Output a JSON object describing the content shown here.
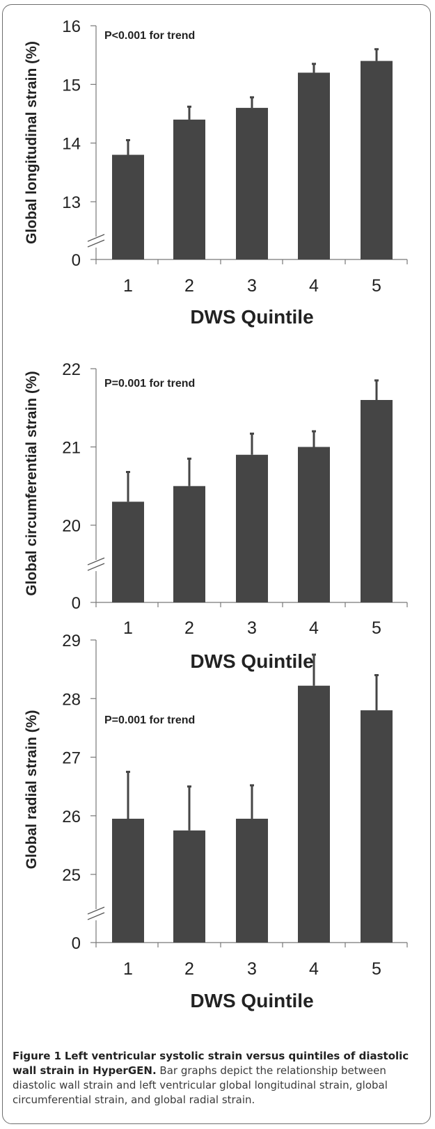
{
  "chart_data": [
    {
      "type": "bar",
      "categories": [
        "1",
        "2",
        "3",
        "4",
        "5"
      ],
      "values": [
        13.8,
        14.4,
        14.6,
        15.2,
        15.4
      ],
      "error_upper": [
        14.05,
        14.62,
        14.78,
        15.35,
        15.6
      ],
      "ylabel": "Global longitudinal strain (%)",
      "xlabel": "DWS Quintile",
      "annotation": "P<0.001 for trend",
      "ylim": [
        13,
        16
      ],
      "yticks": [
        13,
        14,
        15,
        16
      ],
      "axis_break": true,
      "break_value_label": "0",
      "bar_color": "#454545"
    },
    {
      "type": "bar",
      "categories": [
        "1",
        "2",
        "3",
        "4",
        "5"
      ],
      "values": [
        20.3,
        20.5,
        20.9,
        21.0,
        21.6
      ],
      "error_upper": [
        20.68,
        20.85,
        21.17,
        21.2,
        21.85
      ],
      "ylabel": "Global circumferential strain (%)",
      "xlabel": "DWS Quintile",
      "annotation": "P=0.001 for trend",
      "ylim": [
        20,
        22
      ],
      "yticks": [
        20,
        21,
        22
      ],
      "axis_break": true,
      "break_value_label": "0",
      "bar_color": "#454545"
    },
    {
      "type": "bar",
      "categories": [
        "1",
        "2",
        "3",
        "4",
        "5"
      ],
      "values": [
        25.95,
        25.75,
        25.95,
        28.22,
        27.8
      ],
      "error_upper": [
        26.75,
        26.5,
        26.52,
        28.75,
        28.4
      ],
      "ylabel": "Global radial strain (%)",
      "xlabel": "DWS Quintile",
      "annotation": "P=0.001 for trend",
      "ylim": [
        25,
        29
      ],
      "yticks": [
        25,
        26,
        27,
        28,
        29
      ],
      "axis_break": true,
      "break_value_label": "0",
      "bar_color": "#454545"
    }
  ],
  "caption": {
    "label": "Figure 1",
    "title": "Left ventricular systolic strain versus quintiles of diastolic wall strain in HyperGEN.",
    "body": "Bar graphs depict the relationship between diastolic wall strain and left ventricular global longitudinal strain, global circumferential strain, and global radial strain."
  }
}
